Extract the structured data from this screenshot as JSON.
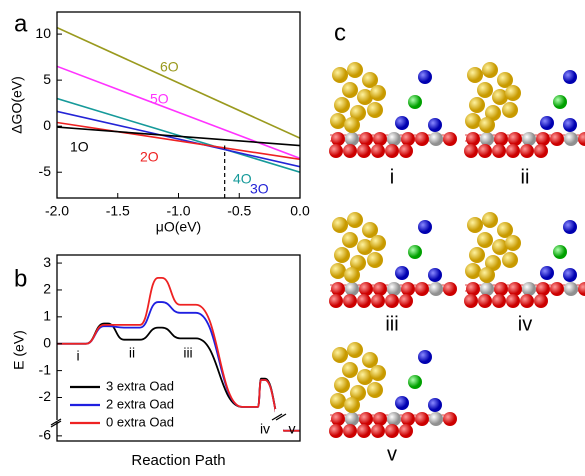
{
  "chart_data": [
    {
      "type": "line",
      "panel_label": "a",
      "x_label": "μO(eV)",
      "y_label": "ΔGO(eV)",
      "x": [
        -2,
        0
      ],
      "xlim": [
        -2,
        0
      ],
      "xticks": [
        {
          "value": -2,
          "label": "-2.0"
        },
        {
          "value": -1.5,
          "label": "-1.5"
        },
        {
          "value": -1,
          "label": "-1.0"
        },
        {
          "value": -0.5,
          "label": "-0.5"
        },
        {
          "value": 0,
          "label": "0.0"
        }
      ],
      "ylim": [
        -7.8,
        12.4
      ],
      "yticks": [
        -5,
        0,
        5,
        10
      ],
      "series": [
        {
          "name": "6O",
          "color": "#9a9a1e",
          "values": [
            10.7,
            -1.3
          ]
        },
        {
          "name": "5O",
          "color": "#ff33ff",
          "values": [
            6.5,
            -3.5
          ]
        },
        {
          "name": "4O",
          "color": "#169a9a",
          "values": [
            3.0,
            -5.0
          ]
        },
        {
          "name": "3O",
          "color": "#2424d6",
          "values": [
            1.6,
            -4.4
          ]
        },
        {
          "name": "2O",
          "color": "#ee2222",
          "values": [
            0.4,
            -3.6
          ]
        },
        {
          "name": "1O",
          "color": "#000000",
          "values": [
            -0.1,
            -2.1
          ]
        }
      ],
      "vline": {
        "x": -0.62,
        "y_top": -2.1
      }
    },
    {
      "type": "profile",
      "panel_label": "b",
      "x_label": "Reaction Path",
      "y_label": "E (eV)",
      "categories": [
        "i",
        null,
        "ii",
        null,
        "iii",
        "iv",
        null,
        "v"
      ],
      "ylim": [
        -6.2,
        3.3
      ],
      "y_break": [
        -2.8,
        -5.5
      ],
      "yticks": [
        -6,
        -2,
        -1,
        0,
        1,
        2,
        3
      ],
      "series": [
        {
          "name": "3 extra Oad",
          "color": "#000000",
          "values": [
            0,
            0.75,
            0.15,
            0.6,
            0.2,
            -2.35,
            -1.3,
            -5.8
          ]
        },
        {
          "name": "2 extra Oad",
          "color": "#1f1fe0",
          "values": [
            0,
            0.65,
            0.6,
            1.55,
            1.15,
            -2.35,
            -1.35,
            -5.8
          ]
        },
        {
          "name": "0 extra Oad",
          "color": "#ee2222",
          "values": [
            0,
            0.7,
            0.7,
            2.45,
            1.45,
            -2.35,
            -1.35,
            -5.8
          ]
        }
      ]
    }
  ],
  "panel_c": {
    "label": "c",
    "structures": [
      "i",
      "ii",
      "iii",
      "iv",
      "v"
    ]
  }
}
